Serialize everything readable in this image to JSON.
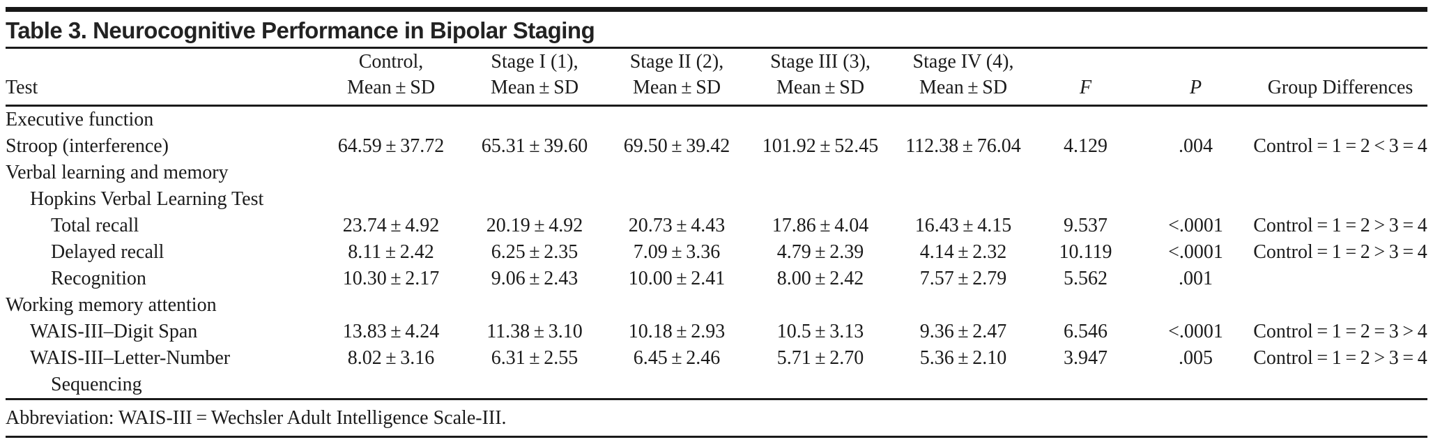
{
  "table": {
    "title": "Table 3. Neurocognitive Performance in Bipolar Staging",
    "columns": [
      {
        "line1": "",
        "line2": "Test"
      },
      {
        "line1": "Control,",
        "line2": "Mean ± SD"
      },
      {
        "line1": "Stage I (1),",
        "line2": "Mean ± SD"
      },
      {
        "line1": "Stage II (2),",
        "line2": "Mean ± SD"
      },
      {
        "line1": "Stage III (3),",
        "line2": "Mean ± SD"
      },
      {
        "line1": "Stage IV (4),",
        "line2": "Mean ± SD"
      },
      {
        "line1": "",
        "line2": "F"
      },
      {
        "line1": "",
        "line2": "P"
      },
      {
        "line1": "",
        "line2": "Group Differences"
      }
    ],
    "rows": [
      {
        "label_lines": [
          "Executive function"
        ],
        "indent": 0,
        "values": [
          "",
          "",
          "",
          "",
          "",
          "",
          "",
          ""
        ]
      },
      {
        "label_lines": [
          "Stroop (interference)"
        ],
        "indent": 0,
        "values": [
          "64.59 ± 37.72",
          "65.31 ± 39.60",
          "69.50 ± 39.42",
          "101.92 ± 52.45",
          "112.38 ± 76.04",
          "4.129",
          ".004",
          "Control = 1 = 2 < 3 = 4"
        ]
      },
      {
        "label_lines": [
          "Verbal learning and memory"
        ],
        "indent": 0,
        "values": [
          "",
          "",
          "",
          "",
          "",
          "",
          "",
          ""
        ]
      },
      {
        "label_lines": [
          "Hopkins Verbal Learning Test"
        ],
        "indent": 1,
        "values": [
          "",
          "",
          "",
          "",
          "",
          "",
          "",
          ""
        ]
      },
      {
        "label_lines": [
          "Total recall"
        ],
        "indent": 2,
        "values": [
          "23.74 ± 4.92",
          "20.19 ± 4.92",
          "20.73 ± 4.43",
          "17.86 ± 4.04",
          "16.43 ± 4.15",
          "9.537",
          "<.0001",
          "Control = 1 = 2 > 3 = 4"
        ]
      },
      {
        "label_lines": [
          "Delayed recall"
        ],
        "indent": 2,
        "values": [
          "8.11 ± 2.42",
          "6.25 ± 2.35",
          "7.09 ± 3.36",
          "4.79 ± 2.39",
          "4.14 ± 2.32",
          "10.119",
          "<.0001",
          "Control = 1 = 2 > 3 = 4"
        ]
      },
      {
        "label_lines": [
          "Recognition"
        ],
        "indent": 2,
        "values": [
          "10.30 ± 2.17",
          "9.06 ± 2.43",
          "10.00 ± 2.41",
          "8.00 ± 2.42",
          "7.57 ± 2.79",
          "5.562",
          ".001",
          ""
        ]
      },
      {
        "label_lines": [
          "Working memory attention"
        ],
        "indent": 0,
        "values": [
          "",
          "",
          "",
          "",
          "",
          "",
          "",
          ""
        ]
      },
      {
        "label_lines": [
          "WAIS-III–Digit Span"
        ],
        "indent": 1,
        "values": [
          "13.83 ± 4.24",
          "11.38 ± 3.10",
          "10.18 ± 2.93",
          "10.5 ± 3.13",
          "9.36 ± 2.47",
          "6.546",
          "<.0001",
          "Control = 1 = 2 = 3 > 4"
        ]
      },
      {
        "label_lines": [
          "WAIS-III–Letter-Number",
          "Sequencing"
        ],
        "indent": 1,
        "values": [
          "8.02 ± 3.16",
          "6.31 ± 2.55",
          "6.45 ± 2.46",
          "5.71 ± 2.70",
          "5.36 ± 2.10",
          "3.947",
          ".005",
          "Control = 1 = 2 > 3 = 4"
        ]
      }
    ],
    "footnote": "Abbreviation: WAIS-III = Wechsler Adult Intelligence Scale-III."
  }
}
